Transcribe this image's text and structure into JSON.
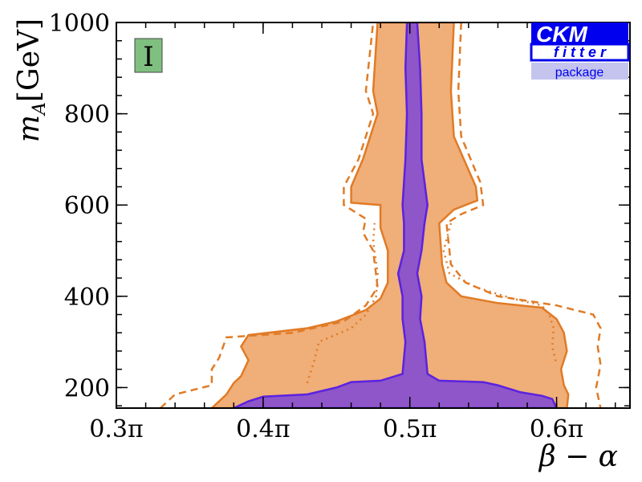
{
  "chart_data": {
    "type": "area",
    "xlabel": "β − α",
    "ylabel_main": "m",
    "ylabel_sub": "A",
    "ylabel_unit": "[GeV]",
    "panel_label": "I",
    "xlim": [
      0.3,
      0.65
    ],
    "ylim": [
      155,
      1000
    ],
    "x_ticks": [
      {
        "value": 0.3,
        "label": "0.3π"
      },
      {
        "value": 0.4,
        "label": "0.4π"
      },
      {
        "value": 0.5,
        "label": "0.5π"
      },
      {
        "value": 0.6,
        "label": "0.6π"
      }
    ],
    "y_ticks": [
      200,
      400,
      600,
      800,
      1000
    ],
    "logo": {
      "line1": "CKM",
      "line2": "fitter",
      "line3": "package"
    },
    "colors": {
      "orange_fill": "#f0ae78",
      "orange_line": "#e07b26",
      "purple_fill": "#8e56c8",
      "purple_line": "#5a22e0",
      "panel_box": "#7fbf7f",
      "logo_blue": "#0000ee"
    },
    "regions": {
      "orange_solid": [
        [
          0.365,
          155
        ],
        [
          0.375,
          185
        ],
        [
          0.38,
          210
        ],
        [
          0.385,
          225
        ],
        [
          0.39,
          260
        ],
        [
          0.385,
          290
        ],
        [
          0.39,
          315
        ],
        [
          0.43,
          330
        ],
        [
          0.45,
          345
        ],
        [
          0.47,
          370
        ],
        [
          0.48,
          395
        ],
        [
          0.485,
          430
        ],
        [
          0.485,
          500
        ],
        [
          0.48,
          550
        ],
        [
          0.48,
          600
        ],
        [
          0.46,
          605
        ],
        [
          0.46,
          640
        ],
        [
          0.468,
          700
        ],
        [
          0.478,
          800
        ],
        [
          0.475,
          850
        ],
        [
          0.478,
          1000
        ],
        [
          0.53,
          1000
        ],
        [
          0.528,
          850
        ],
        [
          0.53,
          750
        ],
        [
          0.545,
          640
        ],
        [
          0.546,
          610
        ],
        [
          0.53,
          590
        ],
        [
          0.52,
          560
        ],
        [
          0.522,
          470
        ],
        [
          0.525,
          430
        ],
        [
          0.535,
          400
        ],
        [
          0.56,
          385
        ],
        [
          0.59,
          375
        ],
        [
          0.6,
          350
        ],
        [
          0.605,
          320
        ],
        [
          0.607,
          280
        ],
        [
          0.603,
          240
        ],
        [
          0.605,
          205
        ],
        [
          0.608,
          185
        ],
        [
          0.607,
          155
        ]
      ],
      "orange_dashed_left": [
        [
          0.33,
          155
        ],
        [
          0.34,
          185
        ],
        [
          0.365,
          205
        ],
        [
          0.365,
          240
        ],
        [
          0.37,
          265
        ],
        [
          0.375,
          310
        ],
        [
          0.42,
          320
        ],
        [
          0.455,
          345
        ],
        [
          0.47,
          380
        ],
        [
          0.478,
          420
        ],
        [
          0.475,
          500
        ],
        [
          0.468,
          540
        ],
        [
          0.47,
          570
        ],
        [
          0.455,
          600
        ],
        [
          0.455,
          640
        ],
        [
          0.465,
          700
        ],
        [
          0.475,
          800
        ],
        [
          0.47,
          850
        ],
        [
          0.475,
          1000
        ]
      ],
      "orange_dashed_right": [
        [
          0.535,
          1000
        ],
        [
          0.533,
          850
        ],
        [
          0.535,
          750
        ],
        [
          0.548,
          650
        ],
        [
          0.55,
          600
        ],
        [
          0.535,
          580
        ],
        [
          0.525,
          560
        ],
        [
          0.528,
          470
        ],
        [
          0.538,
          430
        ],
        [
          0.56,
          400
        ],
        [
          0.6,
          380
        ],
        [
          0.625,
          360
        ],
        [
          0.63,
          330
        ],
        [
          0.628,
          290
        ],
        [
          0.63,
          250
        ],
        [
          0.627,
          200
        ],
        [
          0.63,
          155
        ]
      ],
      "orange_dotted_left": [
        [
          0.43,
          210
        ],
        [
          0.435,
          260
        ],
        [
          0.438,
          300
        ],
        [
          0.46,
          330
        ],
        [
          0.47,
          360
        ],
        [
          0.477,
          400
        ],
        [
          0.478,
          450
        ],
        [
          0.475,
          520
        ],
        [
          0.476,
          560
        ]
      ],
      "orange_dotted_right": [
        [
          0.528,
          560
        ],
        [
          0.523,
          500
        ],
        [
          0.527,
          450
        ],
        [
          0.545,
          420
        ],
        [
          0.57,
          395
        ],
        [
          0.59,
          380
        ],
        [
          0.595,
          360
        ],
        [
          0.598,
          330
        ],
        [
          0.597,
          290
        ],
        [
          0.6,
          250
        ]
      ],
      "purple_solid": [
        [
          0.38,
          155
        ],
        [
          0.39,
          170
        ],
        [
          0.4,
          180
        ],
        [
          0.43,
          185
        ],
        [
          0.45,
          200
        ],
        [
          0.46,
          212
        ],
        [
          0.48,
          215
        ],
        [
          0.495,
          230
        ],
        [
          0.497,
          300
        ],
        [
          0.495,
          350
        ],
        [
          0.495,
          400
        ],
        [
          0.492,
          450
        ],
        [
          0.496,
          500
        ],
        [
          0.496,
          560
        ],
        [
          0.495,
          600
        ],
        [
          0.497,
          700
        ],
        [
          0.498,
          800
        ],
        [
          0.497,
          900
        ],
        [
          0.498,
          1000
        ],
        [
          0.505,
          1000
        ],
        [
          0.507,
          900
        ],
        [
          0.508,
          800
        ],
        [
          0.508,
          700
        ],
        [
          0.512,
          600
        ],
        [
          0.51,
          560
        ],
        [
          0.508,
          500
        ],
        [
          0.505,
          450
        ],
        [
          0.508,
          400
        ],
        [
          0.507,
          350
        ],
        [
          0.51,
          300
        ],
        [
          0.512,
          230
        ],
        [
          0.52,
          215
        ],
        [
          0.55,
          212
        ],
        [
          0.56,
          205
        ],
        [
          0.575,
          190
        ],
        [
          0.59,
          182
        ],
        [
          0.597,
          175
        ],
        [
          0.6,
          155
        ]
      ]
    }
  }
}
